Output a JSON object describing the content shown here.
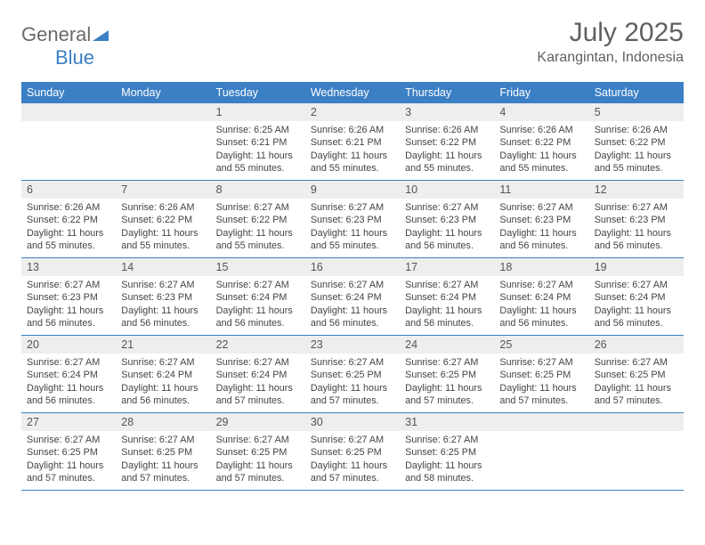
{
  "brand": {
    "name_part1": "General",
    "name_part2": "Blue"
  },
  "title": "July 2025",
  "location": "Karangintan, Indonesia",
  "colors": {
    "header_bg": "#3b7fc4",
    "daynum_bg": "#eeeeee",
    "week_border": "#3b7fc4",
    "text": "#444444",
    "title_text": "#606060",
    "logo_gray": "#6a6a6a",
    "logo_blue": "#3b7fc4"
  },
  "day_headers": [
    "Sunday",
    "Monday",
    "Tuesday",
    "Wednesday",
    "Thursday",
    "Friday",
    "Saturday"
  ],
  "weeks": [
    [
      {
        "empty": true
      },
      {
        "empty": true
      },
      {
        "day": "1",
        "sunrise": "Sunrise: 6:25 AM",
        "sunset": "Sunset: 6:21 PM",
        "daylight1": "Daylight: 11 hours",
        "daylight2": "and 55 minutes."
      },
      {
        "day": "2",
        "sunrise": "Sunrise: 6:26 AM",
        "sunset": "Sunset: 6:21 PM",
        "daylight1": "Daylight: 11 hours",
        "daylight2": "and 55 minutes."
      },
      {
        "day": "3",
        "sunrise": "Sunrise: 6:26 AM",
        "sunset": "Sunset: 6:22 PM",
        "daylight1": "Daylight: 11 hours",
        "daylight2": "and 55 minutes."
      },
      {
        "day": "4",
        "sunrise": "Sunrise: 6:26 AM",
        "sunset": "Sunset: 6:22 PM",
        "daylight1": "Daylight: 11 hours",
        "daylight2": "and 55 minutes."
      },
      {
        "day": "5",
        "sunrise": "Sunrise: 6:26 AM",
        "sunset": "Sunset: 6:22 PM",
        "daylight1": "Daylight: 11 hours",
        "daylight2": "and 55 minutes."
      }
    ],
    [
      {
        "day": "6",
        "sunrise": "Sunrise: 6:26 AM",
        "sunset": "Sunset: 6:22 PM",
        "daylight1": "Daylight: 11 hours",
        "daylight2": "and 55 minutes."
      },
      {
        "day": "7",
        "sunrise": "Sunrise: 6:26 AM",
        "sunset": "Sunset: 6:22 PM",
        "daylight1": "Daylight: 11 hours",
        "daylight2": "and 55 minutes."
      },
      {
        "day": "8",
        "sunrise": "Sunrise: 6:27 AM",
        "sunset": "Sunset: 6:22 PM",
        "daylight1": "Daylight: 11 hours",
        "daylight2": "and 55 minutes."
      },
      {
        "day": "9",
        "sunrise": "Sunrise: 6:27 AM",
        "sunset": "Sunset: 6:23 PM",
        "daylight1": "Daylight: 11 hours",
        "daylight2": "and 55 minutes."
      },
      {
        "day": "10",
        "sunrise": "Sunrise: 6:27 AM",
        "sunset": "Sunset: 6:23 PM",
        "daylight1": "Daylight: 11 hours",
        "daylight2": "and 56 minutes."
      },
      {
        "day": "11",
        "sunrise": "Sunrise: 6:27 AM",
        "sunset": "Sunset: 6:23 PM",
        "daylight1": "Daylight: 11 hours",
        "daylight2": "and 56 minutes."
      },
      {
        "day": "12",
        "sunrise": "Sunrise: 6:27 AM",
        "sunset": "Sunset: 6:23 PM",
        "daylight1": "Daylight: 11 hours",
        "daylight2": "and 56 minutes."
      }
    ],
    [
      {
        "day": "13",
        "sunrise": "Sunrise: 6:27 AM",
        "sunset": "Sunset: 6:23 PM",
        "daylight1": "Daylight: 11 hours",
        "daylight2": "and 56 minutes."
      },
      {
        "day": "14",
        "sunrise": "Sunrise: 6:27 AM",
        "sunset": "Sunset: 6:23 PM",
        "daylight1": "Daylight: 11 hours",
        "daylight2": "and 56 minutes."
      },
      {
        "day": "15",
        "sunrise": "Sunrise: 6:27 AM",
        "sunset": "Sunset: 6:24 PM",
        "daylight1": "Daylight: 11 hours",
        "daylight2": "and 56 minutes."
      },
      {
        "day": "16",
        "sunrise": "Sunrise: 6:27 AM",
        "sunset": "Sunset: 6:24 PM",
        "daylight1": "Daylight: 11 hours",
        "daylight2": "and 56 minutes."
      },
      {
        "day": "17",
        "sunrise": "Sunrise: 6:27 AM",
        "sunset": "Sunset: 6:24 PM",
        "daylight1": "Daylight: 11 hours",
        "daylight2": "and 56 minutes."
      },
      {
        "day": "18",
        "sunrise": "Sunrise: 6:27 AM",
        "sunset": "Sunset: 6:24 PM",
        "daylight1": "Daylight: 11 hours",
        "daylight2": "and 56 minutes."
      },
      {
        "day": "19",
        "sunrise": "Sunrise: 6:27 AM",
        "sunset": "Sunset: 6:24 PM",
        "daylight1": "Daylight: 11 hours",
        "daylight2": "and 56 minutes."
      }
    ],
    [
      {
        "day": "20",
        "sunrise": "Sunrise: 6:27 AM",
        "sunset": "Sunset: 6:24 PM",
        "daylight1": "Daylight: 11 hours",
        "daylight2": "and 56 minutes."
      },
      {
        "day": "21",
        "sunrise": "Sunrise: 6:27 AM",
        "sunset": "Sunset: 6:24 PM",
        "daylight1": "Daylight: 11 hours",
        "daylight2": "and 56 minutes."
      },
      {
        "day": "22",
        "sunrise": "Sunrise: 6:27 AM",
        "sunset": "Sunset: 6:24 PM",
        "daylight1": "Daylight: 11 hours",
        "daylight2": "and 57 minutes."
      },
      {
        "day": "23",
        "sunrise": "Sunrise: 6:27 AM",
        "sunset": "Sunset: 6:25 PM",
        "daylight1": "Daylight: 11 hours",
        "daylight2": "and 57 minutes."
      },
      {
        "day": "24",
        "sunrise": "Sunrise: 6:27 AM",
        "sunset": "Sunset: 6:25 PM",
        "daylight1": "Daylight: 11 hours",
        "daylight2": "and 57 minutes."
      },
      {
        "day": "25",
        "sunrise": "Sunrise: 6:27 AM",
        "sunset": "Sunset: 6:25 PM",
        "daylight1": "Daylight: 11 hours",
        "daylight2": "and 57 minutes."
      },
      {
        "day": "26",
        "sunrise": "Sunrise: 6:27 AM",
        "sunset": "Sunset: 6:25 PM",
        "daylight1": "Daylight: 11 hours",
        "daylight2": "and 57 minutes."
      }
    ],
    [
      {
        "day": "27",
        "sunrise": "Sunrise: 6:27 AM",
        "sunset": "Sunset: 6:25 PM",
        "daylight1": "Daylight: 11 hours",
        "daylight2": "and 57 minutes."
      },
      {
        "day": "28",
        "sunrise": "Sunrise: 6:27 AM",
        "sunset": "Sunset: 6:25 PM",
        "daylight1": "Daylight: 11 hours",
        "daylight2": "and 57 minutes."
      },
      {
        "day": "29",
        "sunrise": "Sunrise: 6:27 AM",
        "sunset": "Sunset: 6:25 PM",
        "daylight1": "Daylight: 11 hours",
        "daylight2": "and 57 minutes."
      },
      {
        "day": "30",
        "sunrise": "Sunrise: 6:27 AM",
        "sunset": "Sunset: 6:25 PM",
        "daylight1": "Daylight: 11 hours",
        "daylight2": "and 57 minutes."
      },
      {
        "day": "31",
        "sunrise": "Sunrise: 6:27 AM",
        "sunset": "Sunset: 6:25 PM",
        "daylight1": "Daylight: 11 hours",
        "daylight2": "and 58 minutes."
      },
      {
        "empty": true
      },
      {
        "empty": true
      }
    ]
  ]
}
